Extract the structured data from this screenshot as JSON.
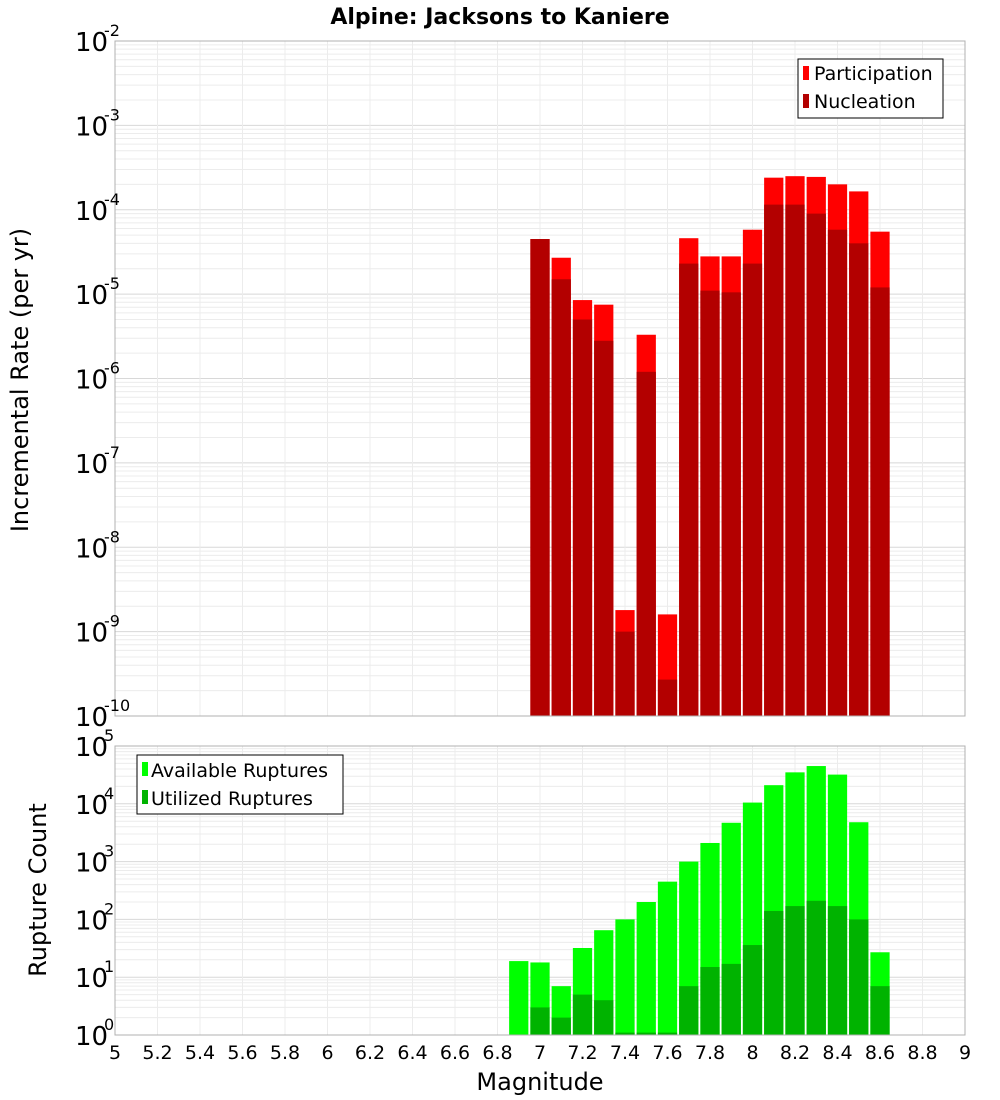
{
  "chart_data": [
    {
      "type": "bar",
      "title": "Alpine: Jacksons to Kaniere",
      "ylabel": "Incremental Rate (per yr)",
      "xlabel": "",
      "yscale": "log",
      "ylim_exp": [
        -10,
        -2
      ],
      "xlim": [
        5,
        9
      ],
      "grid": true,
      "legend_placement": "top-right",
      "x": [
        7.0,
        7.1,
        7.2,
        7.3,
        7.4,
        7.5,
        7.6,
        7.7,
        7.8,
        7.9,
        8.0,
        8.1,
        8.2,
        8.3,
        8.4,
        8.5,
        8.6
      ],
      "series": [
        {
          "name": "Participation",
          "color": "#ff0000",
          "values": [
            4.5e-05,
            2.7e-05,
            8.5e-06,
            7.5e-06,
            1.8e-09,
            3.3e-06,
            1.6e-09,
            4.6e-05,
            2.8e-05,
            2.8e-05,
            5.8e-05,
            0.00024,
            0.00025,
            0.000245,
            0.0002,
            0.000165,
            5.5e-05
          ]
        },
        {
          "name": "Nucleation",
          "color": "#b30000",
          "values": [
            4.5e-05,
            1.5e-05,
            5e-06,
            2.8e-06,
            1e-09,
            1.2e-06,
            2.7e-10,
            2.3e-05,
            1.1e-05,
            1.05e-05,
            2.3e-05,
            0.000115,
            0.000115,
            9e-05,
            5.8e-05,
            4e-05,
            1.2e-05
          ]
        }
      ]
    },
    {
      "type": "bar",
      "title": "",
      "ylabel": "Rupture Count",
      "xlabel": "Magnitude",
      "yscale": "log",
      "ylim_exp": [
        0,
        5
      ],
      "xlim": [
        5,
        9
      ],
      "grid": true,
      "legend_placement": "top-left",
      "x": [
        6.9,
        7.0,
        7.1,
        7.2,
        7.3,
        7.4,
        7.5,
        7.6,
        7.7,
        7.8,
        7.9,
        8.0,
        8.1,
        8.2,
        8.3,
        8.4,
        8.5,
        8.6
      ],
      "series": [
        {
          "name": "Available Ruptures",
          "color": "#00ff00",
          "values": [
            19,
            18,
            7,
            32,
            65,
            100,
            200,
            450,
            1000,
            2100,
            4700,
            10500,
            21000,
            35000,
            45000,
            32000,
            4800,
            27
          ]
        },
        {
          "name": "Utilized Ruptures",
          "color": "#00b300",
          "values": [
            null,
            3,
            2,
            5,
            4,
            1.1,
            1.1,
            1.1,
            7,
            15,
            17,
            36,
            140,
            170,
            210,
            170,
            100,
            7
          ]
        }
      ]
    }
  ],
  "x_ticks": [
    "5",
    "5.2",
    "5.4",
    "5.6",
    "5.8",
    "6",
    "6.2",
    "6.4",
    "6.6",
    "6.8",
    "7",
    "7.2",
    "7.4",
    "7.6",
    "7.8",
    "8",
    "8.2",
    "8.4",
    "8.6",
    "8.8",
    "9"
  ],
  "top_y_ticks": [
    {
      "exp": -10,
      "base": "10",
      "sup": "-10"
    },
    {
      "exp": -9,
      "base": "10",
      "sup": "-9"
    },
    {
      "exp": -8,
      "base": "10",
      "sup": "-8"
    },
    {
      "exp": -7,
      "base": "10",
      "sup": "-7"
    },
    {
      "exp": -6,
      "base": "10",
      "sup": "-6"
    },
    {
      "exp": -5,
      "base": "10",
      "sup": "-5"
    },
    {
      "exp": -4,
      "base": "10",
      "sup": "-4"
    },
    {
      "exp": -3,
      "base": "10",
      "sup": "-3"
    },
    {
      "exp": -2,
      "base": "10",
      "sup": "-2"
    }
  ],
  "bottom_y_ticks": [
    {
      "exp": 0,
      "base": "10",
      "sup": "0"
    },
    {
      "exp": 1,
      "base": "10",
      "sup": "1"
    },
    {
      "exp": 2,
      "base": "10",
      "sup": "2"
    },
    {
      "exp": 3,
      "base": "10",
      "sup": "3"
    },
    {
      "exp": 4,
      "base": "10",
      "sup": "4"
    },
    {
      "exp": 5,
      "base": "10",
      "sup": "5"
    }
  ]
}
